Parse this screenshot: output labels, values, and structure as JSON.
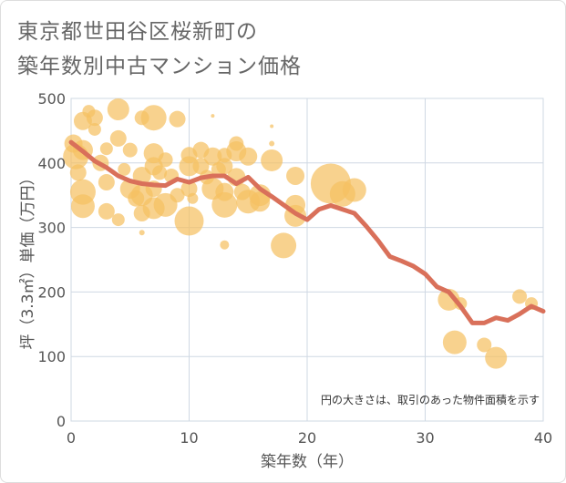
{
  "title_line1": "東京都世田谷区桜新町の",
  "title_line2": "築年数別中古マンション価格",
  "chart_data": {
    "type": "scatter",
    "xlabel": "築年数（年）",
    "ylabel": "坪（3.3㎡）単価（万円）",
    "xlim": [
      0,
      40
    ],
    "ylim": [
      0,
      500
    ],
    "xticks": [
      0,
      10,
      20,
      30,
      40
    ],
    "yticks": [
      0,
      100,
      200,
      300,
      400,
      500
    ],
    "grid": true,
    "note": "円の大きさは、取引のあった物件面積を示す",
    "colors": {
      "bubble": "#f5c163",
      "line": "#d9705a"
    },
    "trend_line": {
      "x": [
        0,
        1,
        2,
        3,
        4,
        5,
        6,
        7,
        8,
        9,
        10,
        11,
        12,
        13,
        14,
        15,
        16,
        17,
        18,
        19,
        20,
        21,
        22,
        23,
        24,
        25,
        26,
        27,
        28,
        29,
        30,
        31,
        32,
        33,
        34,
        35,
        36,
        37,
        38,
        39,
        40
      ],
      "y": [
        432,
        418,
        403,
        393,
        380,
        372,
        368,
        366,
        365,
        375,
        370,
        377,
        380,
        380,
        368,
        378,
        360,
        348,
        335,
        322,
        312,
        328,
        334,
        328,
        322,
        302,
        280,
        255,
        248,
        240,
        228,
        208,
        200,
        178,
        152,
        152,
        160,
        156,
        166,
        178,
        170
      ]
    },
    "points": [
      {
        "x": 0.2,
        "y": 430,
        "s": 10
      },
      {
        "x": 0.4,
        "y": 410,
        "s": 14
      },
      {
        "x": 0.6,
        "y": 385,
        "s": 9
      },
      {
        "x": 1.0,
        "y": 465,
        "s": 10
      },
      {
        "x": 1.0,
        "y": 420,
        "s": 11
      },
      {
        "x": 1.0,
        "y": 355,
        "s": 14
      },
      {
        "x": 1.0,
        "y": 333,
        "s": 13
      },
      {
        "x": 1.5,
        "y": 480,
        "s": 7
      },
      {
        "x": 2.0,
        "y": 470,
        "s": 9
      },
      {
        "x": 2.0,
        "y": 452,
        "s": 7
      },
      {
        "x": 2.5,
        "y": 400,
        "s": 9
      },
      {
        "x": 3.0,
        "y": 422,
        "s": 7
      },
      {
        "x": 3.0,
        "y": 370,
        "s": 9
      },
      {
        "x": 3.0,
        "y": 325,
        "s": 9
      },
      {
        "x": 4.0,
        "y": 483,
        "s": 12
      },
      {
        "x": 4.0,
        "y": 438,
        "s": 9
      },
      {
        "x": 4.0,
        "y": 312,
        "s": 7
      },
      {
        "x": 4.5,
        "y": 390,
        "s": 7
      },
      {
        "x": 5.0,
        "y": 420,
        "s": 8
      },
      {
        "x": 5.0,
        "y": 360,
        "s": 11
      },
      {
        "x": 5.5,
        "y": 345,
        "s": 9
      },
      {
        "x": 6.0,
        "y": 470,
        "s": 8
      },
      {
        "x": 6.0,
        "y": 380,
        "s": 10
      },
      {
        "x": 6.0,
        "y": 350,
        "s": 12
      },
      {
        "x": 6.0,
        "y": 322,
        "s": 9
      },
      {
        "x": 6.0,
        "y": 292,
        "s": 3
      },
      {
        "x": 7.0,
        "y": 470,
        "s": 14
      },
      {
        "x": 7.0,
        "y": 415,
        "s": 11
      },
      {
        "x": 7.0,
        "y": 395,
        "s": 10
      },
      {
        "x": 7.0,
        "y": 360,
        "s": 9
      },
      {
        "x": 7.0,
        "y": 330,
        "s": 12
      },
      {
        "x": 7.5,
        "y": 385,
        "s": 8
      },
      {
        "x": 8.0,
        "y": 405,
        "s": 8
      },
      {
        "x": 8.0,
        "y": 335,
        "s": 13
      },
      {
        "x": 8.5,
        "y": 380,
        "s": 8
      },
      {
        "x": 9.0,
        "y": 468,
        "s": 9
      },
      {
        "x": 9.0,
        "y": 350,
        "s": 8
      },
      {
        "x": 10.0,
        "y": 412,
        "s": 9
      },
      {
        "x": 10.0,
        "y": 395,
        "s": 11
      },
      {
        "x": 10.0,
        "y": 360,
        "s": 9
      },
      {
        "x": 10.0,
        "y": 310,
        "s": 16
      },
      {
        "x": 10.3,
        "y": 345,
        "s": 6
      },
      {
        "x": 11.0,
        "y": 420,
        "s": 9
      },
      {
        "x": 11.0,
        "y": 395,
        "s": 9
      },
      {
        "x": 11.5,
        "y": 378,
        "s": 8
      },
      {
        "x": 12.0,
        "y": 473,
        "s": 2
      },
      {
        "x": 12.0,
        "y": 410,
        "s": 10
      },
      {
        "x": 12.0,
        "y": 360,
        "s": 12
      },
      {
        "x": 12.5,
        "y": 390,
        "s": 8
      },
      {
        "x": 13.0,
        "y": 412,
        "s": 8
      },
      {
        "x": 13.0,
        "y": 395,
        "s": 9
      },
      {
        "x": 13.0,
        "y": 355,
        "s": 10
      },
      {
        "x": 13.0,
        "y": 335,
        "s": 14
      },
      {
        "x": 13.0,
        "y": 273,
        "s": 5
      },
      {
        "x": 14.0,
        "y": 430,
        "s": 8
      },
      {
        "x": 14.0,
        "y": 418,
        "s": 11
      },
      {
        "x": 14.0,
        "y": 378,
        "s": 10
      },
      {
        "x": 14.5,
        "y": 355,
        "s": 9
      },
      {
        "x": 15.0,
        "y": 410,
        "s": 10
      },
      {
        "x": 15.0,
        "y": 340,
        "s": 13
      },
      {
        "x": 16.0,
        "y": 350,
        "s": 12
      },
      {
        "x": 16.0,
        "y": 340,
        "s": 11
      },
      {
        "x": 17.0,
        "y": 457,
        "s": 2
      },
      {
        "x": 17.0,
        "y": 430,
        "s": 3
      },
      {
        "x": 17.0,
        "y": 404,
        "s": 12
      },
      {
        "x": 18.0,
        "y": 272,
        "s": 14
      },
      {
        "x": 19.0,
        "y": 380,
        "s": 10
      },
      {
        "x": 19.0,
        "y": 335,
        "s": 11
      },
      {
        "x": 19.0,
        "y": 318,
        "s": 12
      },
      {
        "x": 22.0,
        "y": 368,
        "s": 22
      },
      {
        "x": 23.0,
        "y": 352,
        "s": 14
      },
      {
        "x": 24.0,
        "y": 358,
        "s": 13
      },
      {
        "x": 32.0,
        "y": 188,
        "s": 12
      },
      {
        "x": 32.5,
        "y": 122,
        "s": 13
      },
      {
        "x": 33.0,
        "y": 182,
        "s": 7
      },
      {
        "x": 35.0,
        "y": 118,
        "s": 8
      },
      {
        "x": 36.0,
        "y": 98,
        "s": 12
      },
      {
        "x": 38.0,
        "y": 193,
        "s": 8
      },
      {
        "x": 39.0,
        "y": 182,
        "s": 7
      }
    ]
  }
}
